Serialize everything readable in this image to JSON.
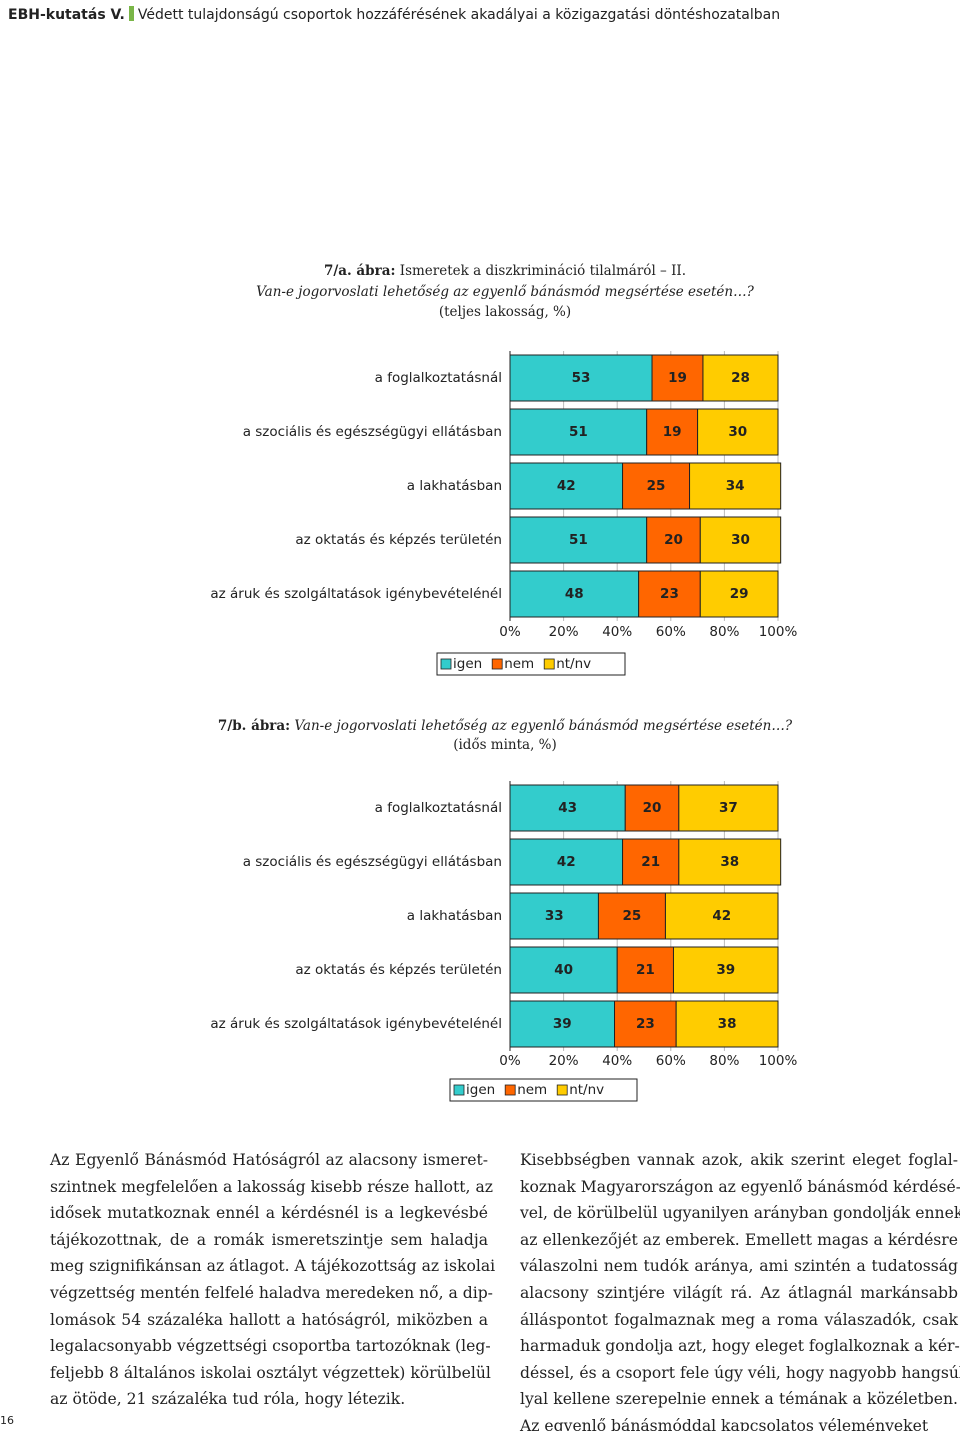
{
  "header": {
    "series": "EBH-kutatás V.",
    "title": "Védett tulajdonságú csoportok hozzáférésének akadályai a közigazgatási döntéshozatalban"
  },
  "chart_data": [
    {
      "type": "stacked_bar",
      "figure_label": "7/a. ábra:",
      "title": "Ismeretek a diszkrimináció tilalmáról – II.",
      "subtitle": "Van-e jogorvoslati lehetőség az egyenlő bánásmód megsértése esetén…?",
      "note": "(teljes lakosság, %)",
      "categories": [
        "a foglalkoztatásnál",
        "a szociális és egészségügyi ellátásban",
        "a lakhatásban",
        "az oktatás és képzés területén",
        "az áruk és szolgáltatások igénybevételénél"
      ],
      "series": [
        {
          "name": "igen",
          "color": "#33cccc",
          "values": [
            53,
            51,
            42,
            51,
            48
          ]
        },
        {
          "name": "nem",
          "color": "#ff6600",
          "values": [
            19,
            19,
            25,
            20,
            23
          ]
        },
        {
          "name": "nt/nv",
          "color": "#ffcc00",
          "values": [
            28,
            30,
            34,
            30,
            29
          ]
        }
      ],
      "xlim": [
        0,
        100
      ],
      "xticks": [
        {
          "value": 0,
          "label": "0%"
        },
        {
          "value": 20,
          "label": "20%"
        },
        {
          "value": 40,
          "label": "40%"
        },
        {
          "value": 60,
          "label": "60%"
        },
        {
          "value": 80,
          "label": "80%"
        },
        {
          "value": 100,
          "label": "100%"
        }
      ],
      "grid": true,
      "legend": "bottom"
    },
    {
      "type": "stacked_bar",
      "figure_label": "7/b. ábra:",
      "title": "Van-e jogorvoslati lehetőség az egyenlő bánásmód megsértése esetén…?",
      "note": "(idős minta, %)",
      "categories": [
        "a foglalkoztatásnál",
        "a szociális és egészségügyi ellátásban",
        "a lakhatásban",
        "az oktatás és képzés területén",
        "az áruk és szolgáltatások igénybevételénél"
      ],
      "series": [
        {
          "name": "igen",
          "color": "#33cccc",
          "values": [
            43,
            42,
            33,
            40,
            39
          ]
        },
        {
          "name": "nem",
          "color": "#ff6600",
          "values": [
            20,
            21,
            25,
            21,
            23
          ]
        },
        {
          "name": "nt/nv",
          "color": "#ffcc00",
          "values": [
            37,
            38,
            42,
            39,
            38
          ]
        }
      ],
      "xlim": [
        0,
        100
      ],
      "xticks": [
        {
          "value": 0,
          "label": "0%"
        },
        {
          "value": 20,
          "label": "20%"
        },
        {
          "value": 40,
          "label": "40%"
        },
        {
          "value": 60,
          "label": "60%"
        },
        {
          "value": 80,
          "label": "80%"
        },
        {
          "value": 100,
          "label": "100%"
        }
      ],
      "grid": true,
      "legend": "bottom"
    }
  ],
  "body": {
    "left": [
      "Az Egyenlő Bánásmód Hatóságról az alacsony ismeret-",
      "szintnek megfelelően a lakosság kisebb része hallott, az",
      "idősek mutatkoznak ennél a kérdésnél is a legkevésbé",
      "tájékozottnak, de a romák ismeretszintje sem haladja",
      "meg szignifikánsan az átlagot. A tájékozottság az iskolai",
      "végzettség mentén felfelé haladva meredeken nő, a dip-",
      "lomások 54 százaléka hallott a hatóságról, miközben a",
      "legalacsonyabb végzettségi csoportba tartozóknak (leg-",
      "feljebb 8 általános iskolai osztályt végzettek) körülbelül",
      "az ötöde, 21 százaléka tud róla, hogy létezik."
    ],
    "right": [
      "Kisebbségben vannak azok, akik szerint eleget foglal-",
      "koznak Magyarországon az egyenlő bánásmód kérdésé-",
      "vel, de körülbelül ugyanilyen arányban gondolják ennek",
      "az ellenkezőjét az emberek. Emellett magas a kérdésre",
      "válaszolni nem tudók aránya, ami szintén a tudatosság",
      "alacsony szintjére világít rá. Az átlagnál markánsabb",
      "álláspontot fogalmaznak meg a roma válaszadók, csak",
      "harmaduk gondolja azt, hogy eleget foglalkoznak a kér-",
      "déssel, és a csoport fele úgy véli, hogy nagyobb hangsúly-",
      "lyal kellene szerepelnie ennek a témának a közéletben.",
      "Az egyenlő bánásmóddal kapcsolatos véleményeket"
    ]
  },
  "page_number": "16"
}
